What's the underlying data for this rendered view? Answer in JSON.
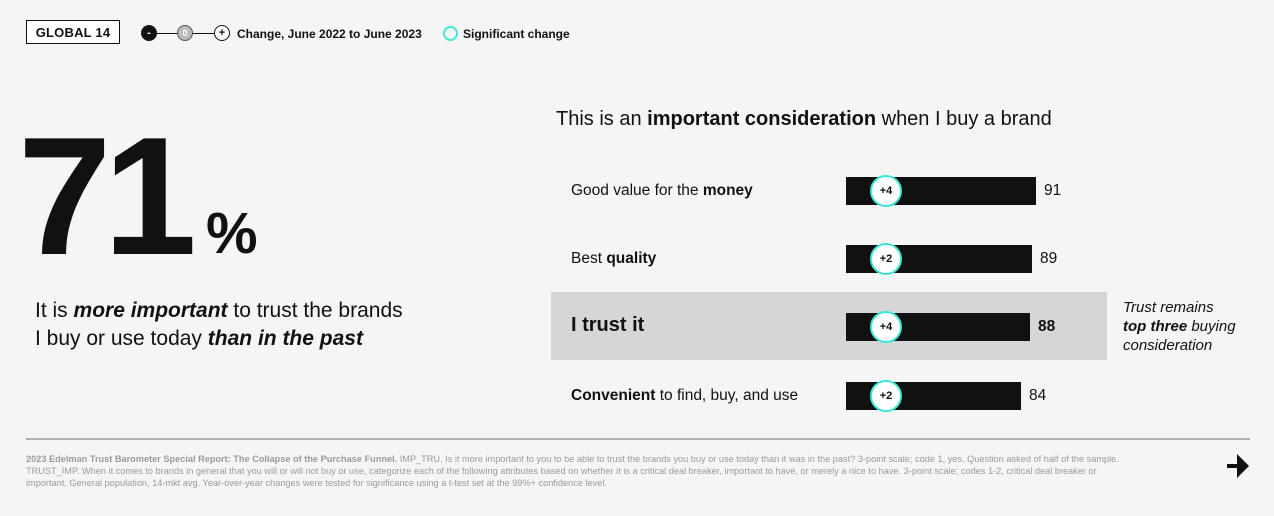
{
  "badge": "GLOBAL 14",
  "legend": {
    "minus": "-",
    "zero": "0",
    "plus": "+",
    "change_label": "Change, June 2022 to June 2023",
    "significant_label": "Significant change",
    "significant_color": "#3ee8d6"
  },
  "headline": {
    "number": "71",
    "percent": "%",
    "line1_a": "It is ",
    "line1_b": "more important",
    "line1_c": " to trust the brands",
    "line2_a": "I buy or use today ",
    "line2_b": "than in the past"
  },
  "chart_title": {
    "a": "This is an ",
    "b": "important consideration",
    "c": " when I buy a brand"
  },
  "side_note": {
    "a": "Trust remains",
    "b": "top three",
    "c": " buying consideration"
  },
  "footnote": {
    "bold": "2023 Edelman Trust Barometer Special Report: The Collapse of the Purchase Funnel.",
    "text": " IMP_TRU. Is it more important to you to be able to trust the brands you buy or use today than it was in the past? 3-point scale; code 1, yes. Question asked of half of the sample. TRUST_IMP. When it comes to brands in general that you will or will not buy or use, categorize each of the following attributes based on whether it is a critical deal breaker, important to have, or merely a nice to have. 3-point scale; codes 1-2, critical deal breaker or important. General population, 14-mkt avg. Year-over-year changes were tested for significance using a t-test set at the 99%+ confidence level."
  },
  "colors": {
    "bar": "#111111",
    "highlight": "#d6d6d6",
    "accent": "#3ee8d6"
  },
  "icons": {
    "next": "arrow-down-right-icon"
  },
  "chart_data": {
    "type": "bar",
    "orientation": "horizontal",
    "title": "This is an important consideration when I buy a brand",
    "categories": [
      "Good value for the money",
      "Best quality",
      "I trust it",
      "Convenient to find, buy, and use"
    ],
    "values": [
      91,
      89,
      88,
      84
    ],
    "changes": [
      "+4",
      "+2",
      "+4",
      "+2"
    ],
    "significant": [
      true,
      true,
      true,
      true
    ],
    "highlighted": "I trust it",
    "labels": [
      {
        "plain_before": "Good value for the ",
        "bold": "money",
        "plain_after": ""
      },
      {
        "plain_before": "Best ",
        "bold": "quality",
        "plain_after": ""
      },
      {
        "plain_before": "",
        "bold": "I trust it",
        "plain_after": ""
      },
      {
        "plain_before": "",
        "bold": "Convenient",
        "plain_after": " to find, buy, and use"
      }
    ]
  }
}
